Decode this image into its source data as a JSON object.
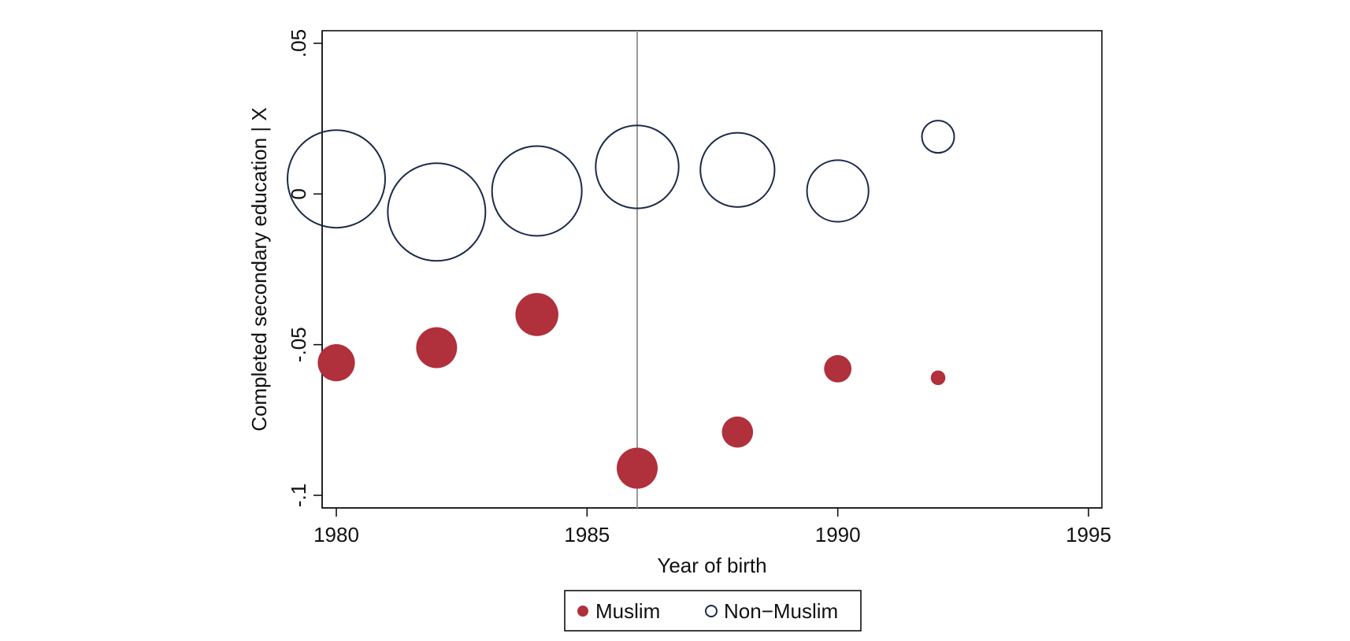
{
  "chart_data": {
    "type": "scatter",
    "xlabel": "Year of birth",
    "ylabel": "Completed secondary education | X",
    "xlim": [
      1980,
      1995
    ],
    "ylim": [
      -0.1,
      0.05
    ],
    "x_ticks": [
      {
        "value": 1980,
        "label": "1980"
      },
      {
        "value": 1985,
        "label": "1985"
      },
      {
        "value": 1990,
        "label": "1990"
      },
      {
        "value": 1995,
        "label": "1995"
      }
    ],
    "y_ticks": [
      {
        "value": 0.05,
        "label": ".05"
      },
      {
        "value": 0,
        "label": "0"
      },
      {
        "value": -0.05,
        "label": "-.05"
      },
      {
        "value": -0.1,
        "label": "-.1"
      }
    ],
    "reference_line_x": 1986,
    "grid": false,
    "legend_position": "bottom",
    "series": [
      {
        "name": "Muslim",
        "marker": "filled-circle",
        "color": "#b0303c",
        "points": [
          {
            "x": 1980,
            "y": -0.056,
            "weight": 0.38
          },
          {
            "x": 1982,
            "y": -0.051,
            "weight": 0.42
          },
          {
            "x": 1984,
            "y": -0.04,
            "weight": 0.44
          },
          {
            "x": 1986,
            "y": -0.091,
            "weight": 0.42
          },
          {
            "x": 1988,
            "y": -0.079,
            "weight": 0.32
          },
          {
            "x": 1990,
            "y": -0.058,
            "weight": 0.28
          },
          {
            "x": 1992,
            "y": -0.061,
            "weight": 0.15
          }
        ]
      },
      {
        "name": "Non−Muslim",
        "marker": "hollow-circle",
        "color": "#1c2a4a",
        "points": [
          {
            "x": 1980,
            "y": 0.005,
            "weight": 1.0
          },
          {
            "x": 1982,
            "y": -0.006,
            "weight": 1.0
          },
          {
            "x": 1984,
            "y": 0.001,
            "weight": 0.92
          },
          {
            "x": 1986,
            "y": 0.009,
            "weight": 0.85
          },
          {
            "x": 1988,
            "y": 0.008,
            "weight": 0.76
          },
          {
            "x": 1990,
            "y": 0.001,
            "weight": 0.63
          },
          {
            "x": 1992,
            "y": 0.019,
            "weight": 0.33
          }
        ]
      }
    ]
  }
}
